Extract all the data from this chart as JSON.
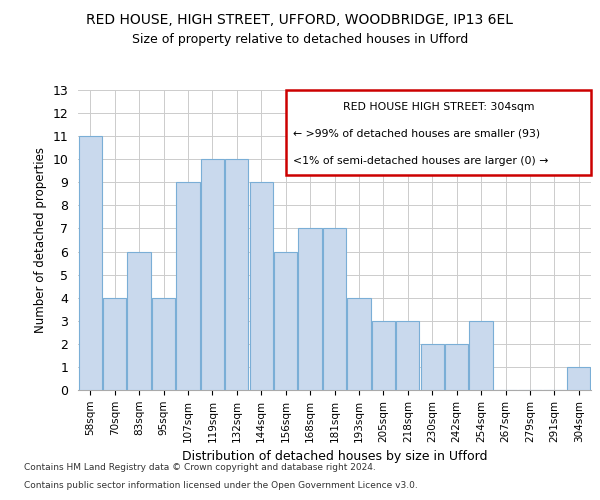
{
  "title1": "RED HOUSE, HIGH STREET, UFFORD, WOODBRIDGE, IP13 6EL",
  "title2": "Size of property relative to detached houses in Ufford",
  "xlabel": "Distribution of detached houses by size in Ufford",
  "ylabel": "Number of detached properties",
  "categories": [
    "58sqm",
    "70sqm",
    "83sqm",
    "95sqm",
    "107sqm",
    "119sqm",
    "132sqm",
    "144sqm",
    "156sqm",
    "168sqm",
    "181sqm",
    "193sqm",
    "205sqm",
    "218sqm",
    "230sqm",
    "242sqm",
    "254sqm",
    "267sqm",
    "279sqm",
    "291sqm",
    "304sqm"
  ],
  "values": [
    11,
    4,
    6,
    4,
    9,
    10,
    10,
    9,
    6,
    7,
    7,
    4,
    3,
    3,
    2,
    2,
    3,
    0,
    0,
    0,
    1
  ],
  "bar_color": "#c9d9ed",
  "bar_edge_color": "#7aaed6",
  "annotation_box_color": "#cc0000",
  "annotation_text_line1": "RED HOUSE HIGH STREET: 304sqm",
  "annotation_text_line2": "← >99% of detached houses are smaller (93)",
  "annotation_text_line3": "<1% of semi-detached houses are larger (0) →",
  "ylim": [
    0,
    13
  ],
  "yticks": [
    0,
    1,
    2,
    3,
    4,
    5,
    6,
    7,
    8,
    9,
    10,
    11,
    12,
    13
  ],
  "footer1": "Contains HM Land Registry data © Crown copyright and database right 2024.",
  "footer2": "Contains public sector information licensed under the Open Government Licence v3.0.",
  "bg_color": "#ffffff",
  "grid_color": "#cccccc"
}
